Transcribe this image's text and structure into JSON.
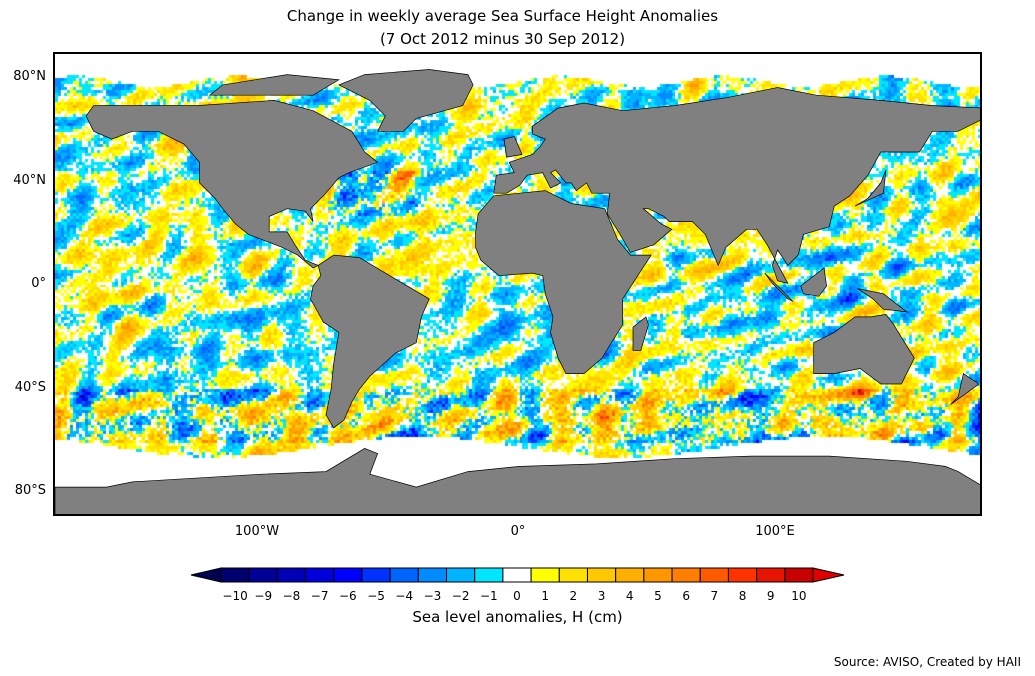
{
  "title_line1": "Change in weekly average Sea Surface Height Anomalies",
  "title_line2": "(7 Oct 2012 minus 30 Sep 2012)",
  "lat_labels": [
    "80°N",
    "40°N",
    "0°",
    "40°S",
    "80°S"
  ],
  "lon_labels": [
    "100°W",
    "0°",
    "100°E"
  ],
  "colors": {
    "land": "#808080",
    "no_data": "#ffffff",
    "coast": "#000000"
  },
  "chart_data": {
    "type": "heatmap",
    "title": "Change in weekly average Sea Surface Height Anomalies (7 Oct 2012 minus 30 Sep 2012)",
    "colorbar_label": "Sea level anomalies, H (cm)",
    "levels": [
      "−10",
      "−9",
      "−8",
      "−7",
      "−6",
      "−5",
      "−4",
      "−3",
      "−2",
      "−1",
      "0",
      "1",
      "2",
      "3",
      "4",
      "5",
      "6",
      "7",
      "8",
      "9",
      "10"
    ],
    "level_colors": [
      "#00006e",
      "#000098",
      "#0000b4",
      "#0000dc",
      "#0000ff",
      "#0032ff",
      "#0064ff",
      "#008cff",
      "#00b4ff",
      "#00e6ff",
      "#ffffff",
      "#ffff00",
      "#ffe100",
      "#ffc800",
      "#ffaf00",
      "#ff9600",
      "#ff7d00",
      "#ff5a00",
      "#ff3200",
      "#e61400",
      "#c80000"
    ],
    "extend_colors": [
      "#000050",
      "#e00000"
    ],
    "range": [
      -10,
      10
    ],
    "units": "cm"
  },
  "source": "Source: AVISO, Created by HAII"
}
